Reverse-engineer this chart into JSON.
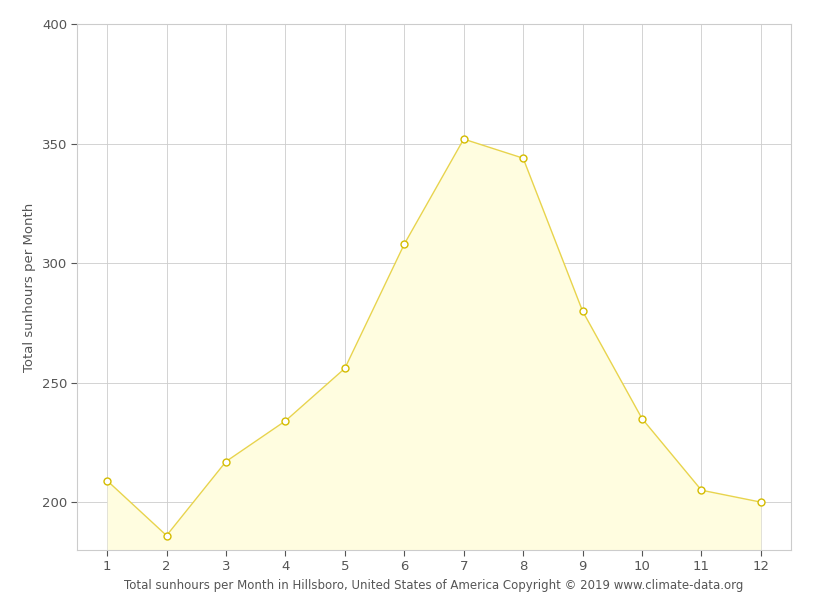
{
  "months": [
    1,
    2,
    3,
    4,
    5,
    6,
    7,
    8,
    9,
    10,
    11,
    12
  ],
  "sunhours": [
    209,
    186,
    217,
    234,
    256,
    308,
    352,
    344,
    280,
    235,
    205,
    200
  ],
  "fill_color": "#FFFDE0",
  "line_color": "#E8D44D",
  "marker_facecolor": "#FFFFFF",
  "marker_edgecolor": "#D4BC00",
  "xlabel": "Total sunhours per Month in Hillsboro, United States of America Copyright © 2019 www.climate-data.org",
  "ylabel": "Total sunhours per Month",
  "ylim": [
    180,
    400
  ],
  "xlim": [
    0.5,
    12.5
  ],
  "yticks": [
    200,
    250,
    300,
    350,
    400
  ],
  "xticks": [
    1,
    2,
    3,
    4,
    5,
    6,
    7,
    8,
    9,
    10,
    11,
    12
  ],
  "grid_color": "#CCCCCC",
  "background_color": "#FFFFFF",
  "xlabel_fontsize": 8.5,
  "ylabel_fontsize": 9.5,
  "tick_fontsize": 9.5,
  "tick_color": "#555555",
  "label_color": "#555555"
}
